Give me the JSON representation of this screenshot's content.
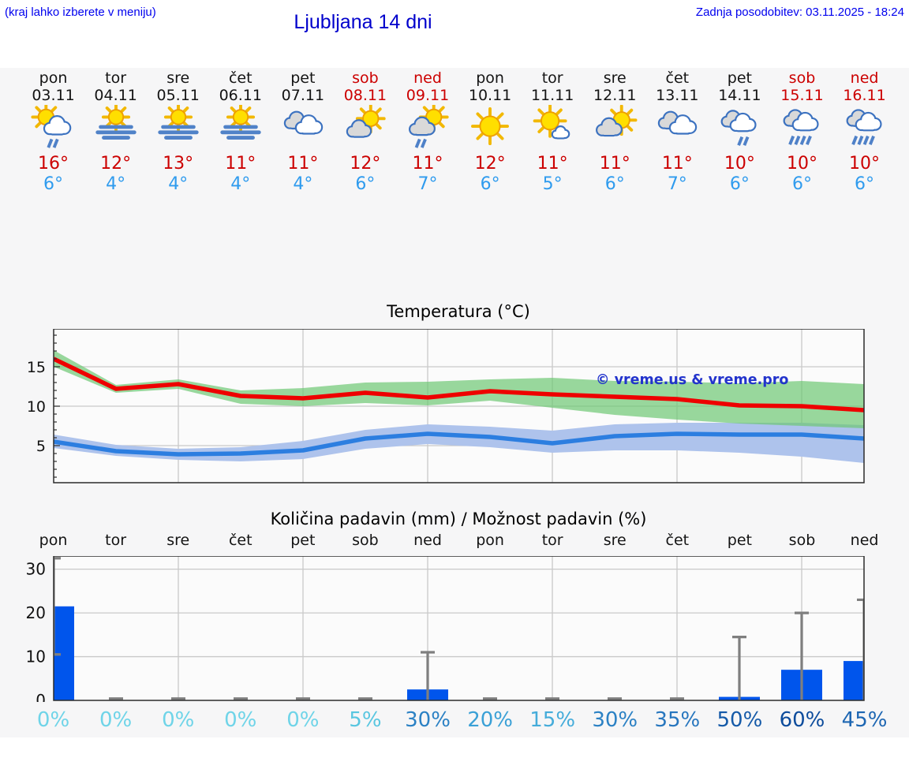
{
  "header": {
    "menu_hint": "(kraj lahko izberete v meniju)",
    "title": "Ljubljana 14 dni",
    "last_update": "Zadnja posodobitev: 03.11.2025 - 18:24"
  },
  "colors": {
    "header_blue": "#0000ee",
    "title_blue": "#0000cc",
    "weekend_red": "#cc0000",
    "day_black": "#141414",
    "max_temp_red": "#cc0000",
    "min_temp_blue": "#2f9bee",
    "red_line": "#ee0000",
    "blue_line": "#2c7ee0",
    "green_band": "rgba(110,200,115,0.70)",
    "blue_band": "#aec3ec",
    "bar_blue": "#0055ec",
    "whisker_gray": "#7f7f7f",
    "grid_gray": "#c9c9c9",
    "axis_dark": "#2b2b2b",
    "chart_bg": "#fbfbfb",
    "panel_bg": "#f6f6f7",
    "watermark_blue": "#2233cc"
  },
  "days": [
    {
      "name": "pon",
      "date": "03.11",
      "weekend": false,
      "icon": "sun-cloud-rain",
      "tmax": "16°",
      "tmin": "6°"
    },
    {
      "name": "tor",
      "date": "04.11",
      "weekend": false,
      "icon": "sun-fog",
      "tmax": "12°",
      "tmin": "4°"
    },
    {
      "name": "sre",
      "date": "05.11",
      "weekend": false,
      "icon": "sun-fog",
      "tmax": "13°",
      "tmin": "4°"
    },
    {
      "name": "čet",
      "date": "06.11",
      "weekend": false,
      "icon": "sun-fog",
      "tmax": "11°",
      "tmin": "4°"
    },
    {
      "name": "pet",
      "date": "07.11",
      "weekend": false,
      "icon": "cloudy",
      "tmax": "11°",
      "tmin": "4°"
    },
    {
      "name": "sob",
      "date": "08.11",
      "weekend": true,
      "icon": "sun-cloud",
      "tmax": "12°",
      "tmin": "6°"
    },
    {
      "name": "ned",
      "date": "09.11",
      "weekend": true,
      "icon": "sun-cloud-showers",
      "tmax": "11°",
      "tmin": "7°"
    },
    {
      "name": "pon",
      "date": "10.11",
      "weekend": false,
      "icon": "sun",
      "tmax": "12°",
      "tmin": "6°"
    },
    {
      "name": "tor",
      "date": "11.11",
      "weekend": false,
      "icon": "sun-small-cloud",
      "tmax": "11°",
      "tmin": "5°"
    },
    {
      "name": "sre",
      "date": "12.11",
      "weekend": false,
      "icon": "cloud-sun",
      "tmax": "11°",
      "tmin": "6°"
    },
    {
      "name": "čet",
      "date": "13.11",
      "weekend": false,
      "icon": "cloudy",
      "tmax": "11°",
      "tmin": "7°"
    },
    {
      "name": "pet",
      "date": "14.11",
      "weekend": false,
      "icon": "cloud-rain",
      "tmax": "10°",
      "tmin": "6°"
    },
    {
      "name": "sob",
      "date": "15.11",
      "weekend": true,
      "icon": "cloud-heavy-rain",
      "tmax": "10°",
      "tmin": "6°"
    },
    {
      "name": "ned",
      "date": "16.11",
      "weekend": true,
      "icon": "cloud-heavy-rain",
      "tmax": "10°",
      "tmin": "6°"
    }
  ],
  "chart_data": [
    {
      "type": "line",
      "title": "Temperatura (°C)",
      "categories": [
        "pon 03.11",
        "tor 04.11",
        "sre 05.11",
        "čet 06.11",
        "pet 07.11",
        "sob 08.11",
        "ned 09.11",
        "pon 10.11",
        "tor 11.11",
        "sre 12.11",
        "čet 13.11",
        "pet 14.11",
        "sob 15.11",
        "ned 16.11"
      ],
      "series": [
        {
          "name": "max temperature",
          "color": "#ee0000",
          "values": [
            16,
            12.2,
            12.8,
            11.3,
            11.0,
            11.7,
            11.1,
            11.9,
            11.5,
            11.2,
            10.9,
            10.1,
            10.0,
            9.5
          ]
        },
        {
          "name": "min temperature",
          "color": "#2c7ee0",
          "values": [
            5.5,
            4.3,
            3.9,
            4.0,
            4.4,
            5.9,
            6.5,
            6.1,
            5.3,
            6.2,
            6.5,
            6.4,
            6.4,
            5.9
          ]
        }
      ],
      "bands": [
        {
          "name": "max range",
          "color": "rgba(110,200,115,0.70)",
          "hi": [
            17.1,
            12.7,
            13.4,
            12.0,
            12.3,
            13.0,
            13.1,
            13.4,
            13.6,
            13.2,
            13.1,
            12.9,
            13.2,
            12.8
          ],
          "lo": [
            15.0,
            11.7,
            12.2,
            10.3,
            10.0,
            10.4,
            10.1,
            10.7,
            9.8,
            8.9,
            8.3,
            7.8,
            7.5,
            7.2
          ]
        },
        {
          "name": "min range",
          "color": "#aec3ec",
          "hi": [
            6.4,
            5.1,
            4.6,
            4.8,
            5.6,
            7.0,
            7.7,
            7.4,
            6.9,
            7.7,
            7.9,
            7.9,
            7.9,
            7.6
          ],
          "lo": [
            4.7,
            3.7,
            3.2,
            3.0,
            3.3,
            4.6,
            5.2,
            4.8,
            4.1,
            4.4,
            4.4,
            4.1,
            3.6,
            2.8
          ]
        }
      ],
      "ylim": [
        0.3,
        19.8
      ],
      "yticks": [
        5,
        10,
        15
      ],
      "vgrid_day_indexes": [
        2,
        4,
        6,
        8,
        10,
        12
      ],
      "grid": "on",
      "legend": "none",
      "watermark": "© vreme.us & vreme.pro"
    },
    {
      "type": "bar",
      "title": "Količina padavin (mm) / Možnost padavin (%)",
      "categories": [
        "pon",
        "tor",
        "sre",
        "čet",
        "pet",
        "sob",
        "ned",
        "pon",
        "tor",
        "sre",
        "čet",
        "pet",
        "sob",
        "ned"
      ],
      "values": [
        21.5,
        0,
        0,
        0,
        0,
        0,
        2.5,
        0,
        0,
        0,
        0,
        0.8,
        7,
        9
      ],
      "whisker_hi": [
        32.5,
        0.4,
        0.4,
        0.4,
        0.4,
        0.4,
        11,
        0.4,
        0.4,
        0.4,
        0.4,
        14.5,
        20,
        23
      ],
      "whisker_lo": [
        10.5,
        0,
        0,
        0,
        0,
        0,
        0,
        0,
        0,
        0,
        0,
        0,
        0,
        0
      ],
      "probability_percent": [
        0,
        0,
        0,
        0,
        0,
        5,
        30,
        20,
        15,
        30,
        35,
        50,
        60,
        45
      ],
      "probability_labels": [
        "0%",
        "0%",
        "0%",
        "0%",
        "0%",
        "5%",
        "30%",
        "20%",
        "15%",
        "30%",
        "35%",
        "50%",
        "60%",
        "45%"
      ],
      "probability_colors": [
        "#6fd4e8",
        "#6fd4e8",
        "#6fd4e8",
        "#6fd4e8",
        "#6fd4e8",
        "#59c6e0",
        "#2b81c4",
        "#3aa0d6",
        "#45acda",
        "#2b81c4",
        "#2776be",
        "#155aa8",
        "#0d4c9c",
        "#1d66b2"
      ],
      "ylim": [
        0,
        33
      ],
      "yticks": [
        0,
        10,
        20,
        30
      ],
      "vgrid_day_indexes": [
        2,
        4,
        6,
        8,
        10,
        12
      ],
      "grid": "on",
      "legend": "none"
    }
  ]
}
